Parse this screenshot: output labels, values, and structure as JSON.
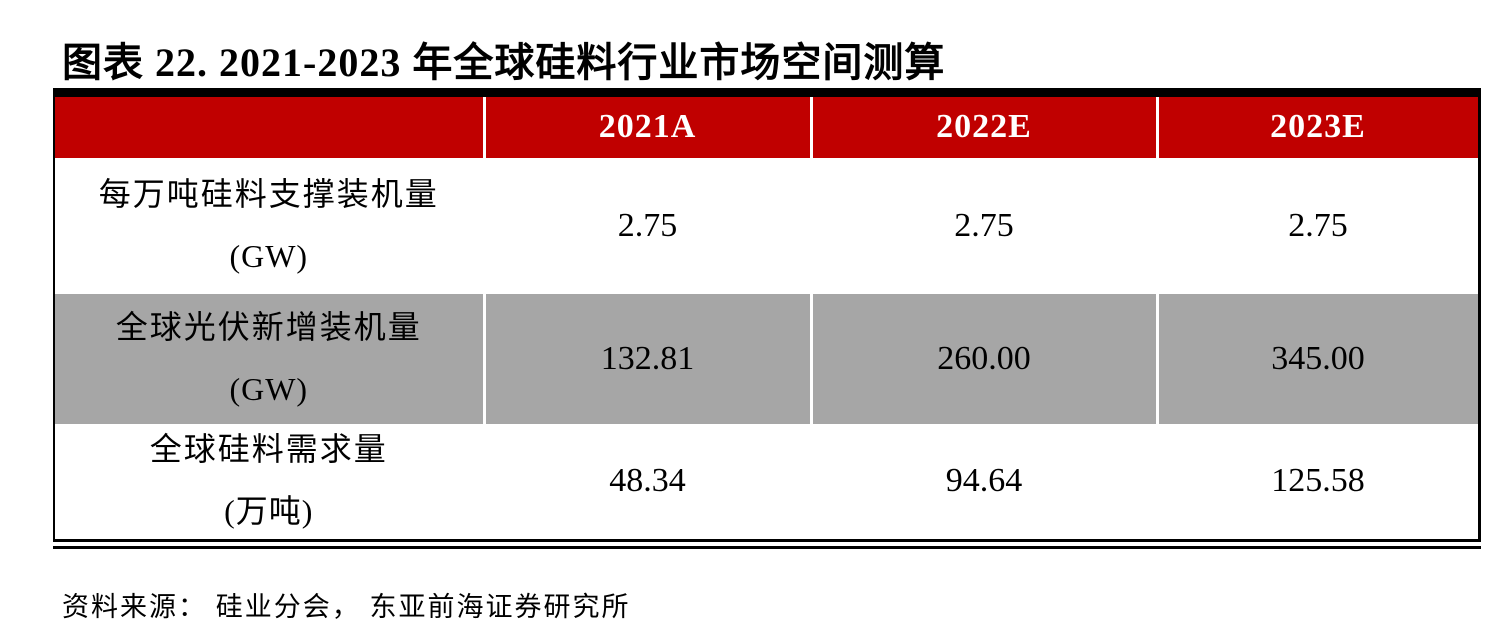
{
  "figure": {
    "title": "图表 22. 2021-2023 年全球硅料行业市场空间测算",
    "source": "资料来源： 硅业分会， 东亚前海证券研究所"
  },
  "table": {
    "columns": [
      "",
      "2021A",
      "2022E",
      "2023E"
    ],
    "rows": [
      {
        "label": "每万吨硅料支撑装机量",
        "unit": "(GW)",
        "values": [
          "2.75",
          "2.75",
          "2.75"
        ]
      },
      {
        "label": "全球光伏新增装机量",
        "unit": "(GW)",
        "values": [
          "132.81",
          "260.00",
          "345.00"
        ]
      },
      {
        "label": "全球硅料需求量",
        "unit": "(万吨)",
        "values": [
          "48.34",
          "94.64",
          "125.58"
        ]
      }
    ]
  },
  "colors": {
    "header_bg": "#C00000",
    "header_text": "#FFFFFF",
    "alt_row_bg": "#A6A6A6",
    "column_divider": "#FFFFFF",
    "rule": "#000000"
  },
  "chart_data": {
    "type": "table",
    "title": "图表 22. 2021-2023 年全球硅料行业市场空间测算",
    "columns": [
      "2021A",
      "2022E",
      "2023E"
    ],
    "rows": [
      {
        "metric": "每万吨硅料支撑装机量 (GW)",
        "values": [
          2.75,
          2.75,
          2.75
        ]
      },
      {
        "metric": "全球光伏新增装机量 (GW)",
        "values": [
          132.81,
          260.0,
          345.0
        ]
      },
      {
        "metric": "全球硅料需求量 (万吨)",
        "values": [
          48.34,
          94.64,
          125.58
        ]
      }
    ],
    "source": "资料来源： 硅业分会， 东亚前海证券研究所"
  }
}
